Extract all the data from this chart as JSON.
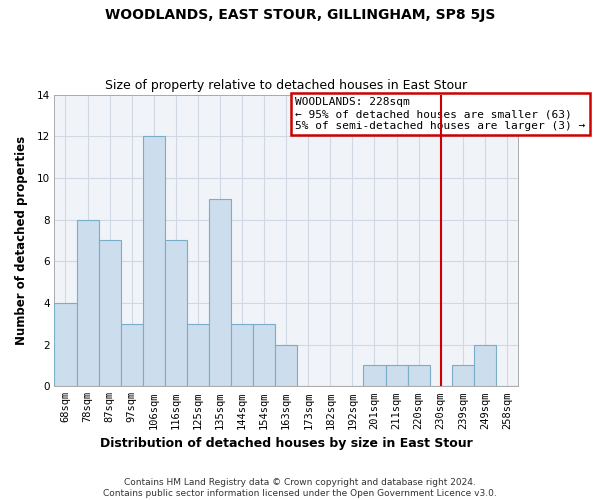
{
  "title": "WOODLANDS, EAST STOUR, GILLINGHAM, SP8 5JS",
  "subtitle": "Size of property relative to detached houses in East Stour",
  "xlabel": "Distribution of detached houses by size in East Stour",
  "ylabel": "Number of detached properties",
  "bin_labels": [
    "68sqm",
    "78sqm",
    "87sqm",
    "97sqm",
    "106sqm",
    "116sqm",
    "125sqm",
    "135sqm",
    "144sqm",
    "154sqm",
    "163sqm",
    "173sqm",
    "182sqm",
    "192sqm",
    "201sqm",
    "211sqm",
    "220sqm",
    "230sqm",
    "239sqm",
    "249sqm",
    "258sqm"
  ],
  "bar_heights": [
    4,
    8,
    7,
    3,
    12,
    7,
    3,
    9,
    3,
    3,
    2,
    0,
    0,
    0,
    1,
    1,
    1,
    0,
    1,
    2,
    0
  ],
  "bar_color": "#ccdded",
  "bar_edgecolor": "#7aaec8",
  "vline_index": 17,
  "vline_color": "#cc0000",
  "ylim": [
    0,
    14
  ],
  "yticks": [
    0,
    2,
    4,
    6,
    8,
    10,
    12,
    14
  ],
  "legend_title": "WOODLANDS: 228sqm",
  "legend_line1": "← 95% of detached houses are smaller (63)",
  "legend_line2": "5% of semi-detached houses are larger (3) →",
  "legend_box_facecolor": "#ffffff",
  "legend_box_edgecolor": "#cc0000",
  "footnote1": "Contains HM Land Registry data © Crown copyright and database right 2024.",
  "footnote2": "Contains public sector information licensed under the Open Government Licence v3.0.",
  "title_fontsize": 10,
  "subtitle_fontsize": 9,
  "xlabel_fontsize": 9,
  "ylabel_fontsize": 8.5,
  "tick_fontsize": 7.5,
  "legend_fontsize": 8,
  "footnote_fontsize": 6.5,
  "grid_color": "#d0d8e4",
  "bg_color": "#f0f4f8"
}
